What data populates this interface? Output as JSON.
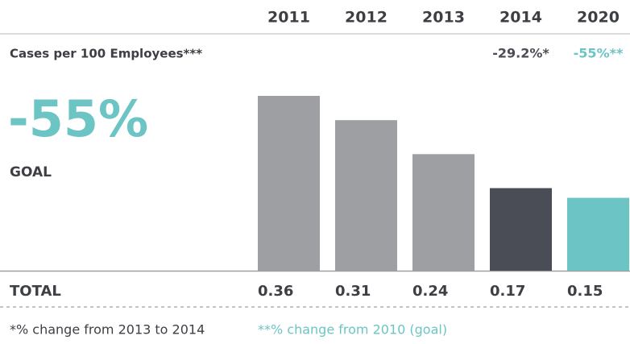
{
  "chart_data": {
    "type": "bar",
    "categories": [
      "2011",
      "2012",
      "2013",
      "2014",
      "2020"
    ],
    "values": [
      0.36,
      0.31,
      0.24,
      0.17,
      0.15
    ],
    "colors": [
      "#9d9fa3",
      "#9d9fa3",
      "#9d9fa3",
      "#4a4d55",
      "#6cc5c4"
    ],
    "row_label": "Cases per 100 Employees***",
    "changes": [
      null,
      null,
      null,
      "-29.2%*",
      "-55%**"
    ],
    "goal_value_label": "-55%",
    "goal_label": "GOAL",
    "total_label": "TOTAL",
    "footnotes": [
      "*% change from 2013 to 2014",
      "**% change from 2010 (goal)"
    ],
    "goal_color": "#6cc5c4"
  }
}
